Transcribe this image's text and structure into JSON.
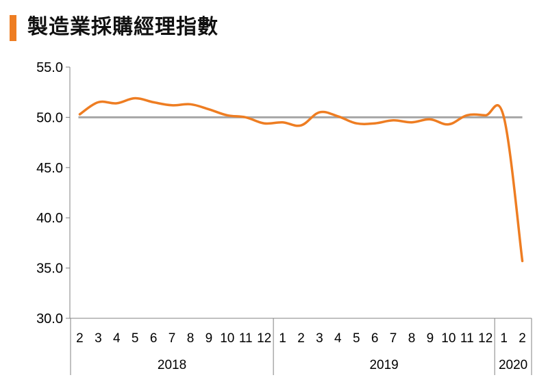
{
  "title": "製造業採購經理指數",
  "colors": {
    "accent": "#EE7D22",
    "line": "#EE7D22",
    "baseline": "#A6A6A6",
    "axis": "#808080"
  },
  "chart_data": {
    "type": "line",
    "title": "製造業採購經理指數",
    "ylim": [
      30.0,
      55.0
    ],
    "yticks": [
      "55.0",
      "50.0",
      "45.0",
      "40.0",
      "35.0",
      "30.0"
    ],
    "reference_line": 50.0,
    "grid": false,
    "legend": "none",
    "categories": [
      "2",
      "3",
      "4",
      "5",
      "6",
      "7",
      "8",
      "9",
      "10",
      "11",
      "12",
      "1",
      "2",
      "3",
      "4",
      "5",
      "6",
      "7",
      "8",
      "9",
      "10",
      "11",
      "12",
      "1",
      "2"
    ],
    "year_groups": [
      {
        "label": "2018",
        "count": 11
      },
      {
        "label": "2019",
        "count": 12
      },
      {
        "label": "2020",
        "count": 2
      }
    ],
    "series": [
      {
        "values": [
          50.3,
          51.5,
          51.4,
          51.9,
          51.5,
          51.2,
          51.3,
          50.8,
          50.2,
          50.0,
          49.4,
          49.5,
          49.2,
          50.5,
          50.1,
          49.4,
          49.4,
          49.7,
          49.5,
          49.8,
          49.3,
          50.2,
          50.2,
          50.0,
          35.7
        ]
      }
    ]
  }
}
